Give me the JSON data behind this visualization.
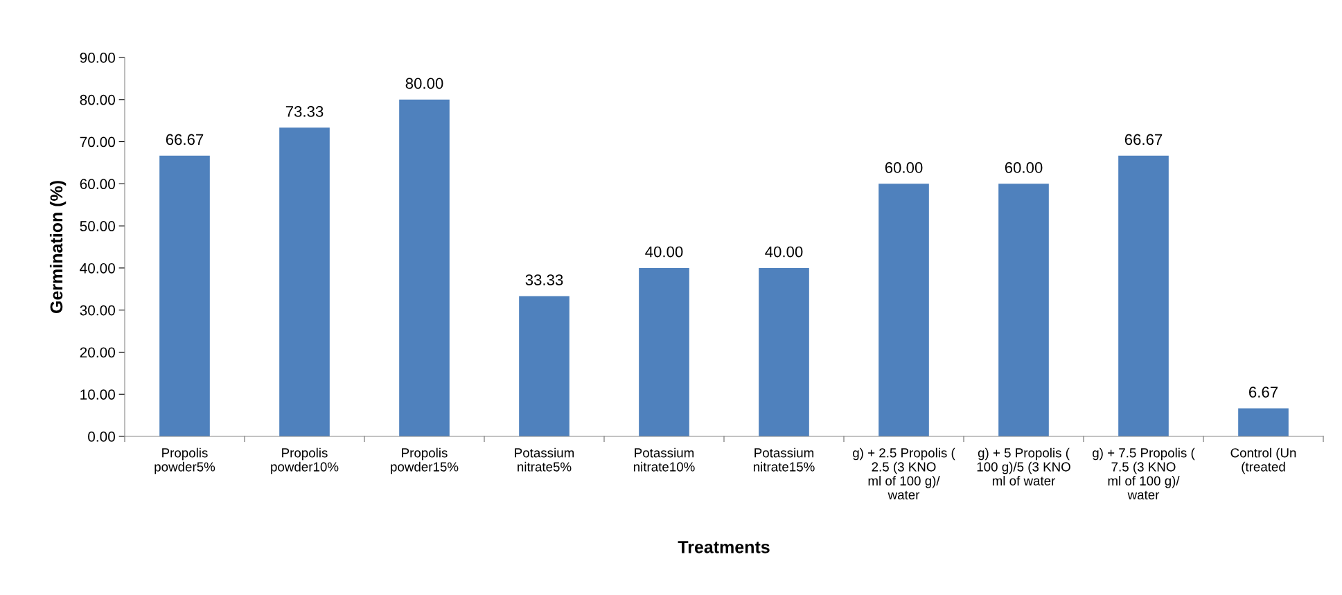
{
  "chart_data": {
    "type": "bar",
    "xlabel": "Treatments",
    "ylabel": "Germination (%)",
    "categories": [
      "Propolis\npowder5%",
      "Propolis\npowder10%",
      "Propolis\npowder15%",
      "Potassium\nnitrate5%",
      "Potassium\nnitrate10%",
      "Potassium\nnitrate15%",
      "g) + 2.5 Propolis (\n2.5 (3 KNO\nml of 100 g)/\nwater",
      "g) + 5 Propolis (\n100 g)/5 (3 KNO\nml of water",
      "g) + 7.5 Propolis (\n7.5 (3 KNO\nml of 100 g)/\nwater",
      "Control (Un\n(treated"
    ],
    "values": [
      66.67,
      73.33,
      80.0,
      33.33,
      40.0,
      40.0,
      60.0,
      60.0,
      66.67,
      6.67
    ],
    "value_labels": [
      "66.67",
      "73.33",
      "80.00",
      "33.33",
      "40.00",
      "40.00",
      "60.00",
      "60.00",
      "66.67",
      "6.67"
    ],
    "color": "#4f81bd",
    "ylim": [
      0,
      90
    ],
    "yticks": [
      {
        "value": 0,
        "label": "0.00"
      },
      {
        "value": 10,
        "label": "10.00"
      },
      {
        "value": 20,
        "label": "20.00"
      },
      {
        "value": 30,
        "label": "30.00"
      },
      {
        "value": 40,
        "label": "40.00"
      },
      {
        "value": 50,
        "label": "50.00"
      },
      {
        "value": 60,
        "label": "60.00"
      },
      {
        "value": 70,
        "label": "70.00"
      },
      {
        "value": 80,
        "label": "80.00"
      },
      {
        "value": 90,
        "label": "90.00"
      }
    ],
    "grid": false,
    "legend": false
  }
}
